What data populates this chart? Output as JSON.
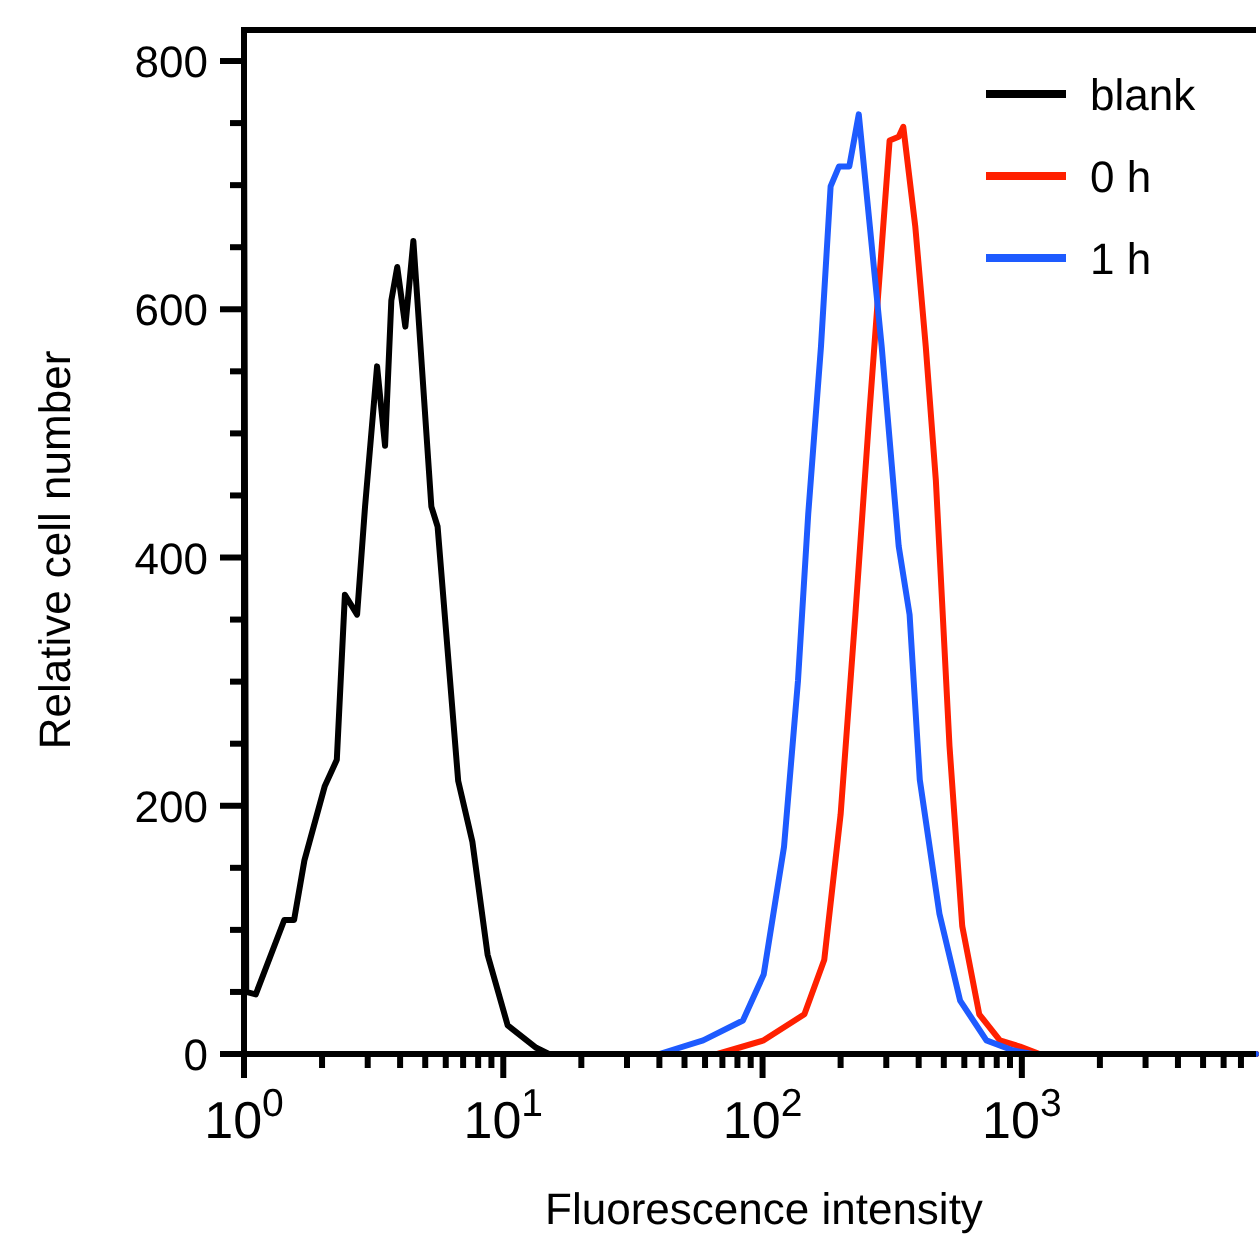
{
  "chart_data": {
    "type": "line",
    "xlabel": "Fluorescence intensity",
    "ylabel": "Relative cell number",
    "log": "x",
    "xlim": [
      1,
      8000
    ],
    "ylim": [
      0,
      825
    ],
    "xticks": [
      {
        "value": 1,
        "label": "10$^{0}$"
      },
      {
        "value": 2,
        "label": null
      },
      {
        "value": 3,
        "label": null
      },
      {
        "value": 4,
        "label": null
      },
      {
        "value": 5,
        "label": null
      },
      {
        "value": 6,
        "label": null
      },
      {
        "value": 7,
        "label": null
      },
      {
        "value": 8,
        "label": null
      },
      {
        "value": 9,
        "label": null
      },
      {
        "value": 10,
        "label": "10$^{1}$"
      },
      {
        "value": 20,
        "label": null
      },
      {
        "value": 30,
        "label": null
      },
      {
        "value": 40,
        "label": null
      },
      {
        "value": 50,
        "label": null
      },
      {
        "value": 60,
        "label": null
      },
      {
        "value": 70,
        "label": null
      },
      {
        "value": 80,
        "label": null
      },
      {
        "value": 90,
        "label": null
      },
      {
        "value": 100,
        "label": "10$^{2}$"
      },
      {
        "value": 200,
        "label": null
      },
      {
        "value": 300,
        "label": null
      },
      {
        "value": 400,
        "label": null
      },
      {
        "value": 500,
        "label": null
      },
      {
        "value": 600,
        "label": null
      },
      {
        "value": 700,
        "label": null
      },
      {
        "value": 800,
        "label": null
      },
      {
        "value": 900,
        "label": null
      },
      {
        "value": 1000,
        "label": "10$^{3}$"
      },
      {
        "value": 2000,
        "label": null
      },
      {
        "value": 3000,
        "label": null
      },
      {
        "value": 4000,
        "label": null
      },
      {
        "value": 5000,
        "label": null
      },
      {
        "value": 6000,
        "label": null
      },
      {
        "value": 7000,
        "label": null
      }
    ],
    "yticks": [
      0,
      {
        "value": 50,
        "label": null
      },
      {
        "value": 100,
        "label": null
      },
      {
        "value": 150,
        "label": null
      },
      200,
      {
        "value": 250,
        "label": null
      },
      {
        "value": 300,
        "label": null
      },
      {
        "value": 350,
        "label": null
      },
      400,
      {
        "value": 450,
        "label": null
      },
      {
        "value": 500,
        "label": null
      },
      {
        "value": 550,
        "label": null
      },
      600,
      {
        "value": 650,
        "label": null
      },
      {
        "value": 700,
        "label": null
      },
      {
        "value": 750,
        "label": null
      },
      800
    ],
    "legend": "top right",
    "line_style": "solid",
    "marker": "none",
    "grid": false,
    "series": [
      {
        "name": "blank",
        "color": "#000000",
        "x": [
          1,
          1.02,
          1.11,
          1.43,
          1.56,
          1.71,
          2.05,
          2.28,
          2.45,
          2.73,
          2.93,
          3.26,
          3.5,
          3.7,
          3.9,
          4.19,
          4.5,
          5.28,
          5.58,
          6.7,
          7.6,
          8.7,
          10.4,
          13.4,
          15,
          8000
        ],
        "values": [
          770,
          50,
          48,
          108,
          108,
          156,
          216,
          237,
          370,
          354,
          441,
          554,
          490,
          607,
          634,
          586,
          655,
          441,
          425,
          220,
          171,
          80,
          23,
          5,
          0,
          0
        ]
      },
      {
        "name": "0 h",
        "color": "#ff2000",
        "x": [
          1,
          67,
          101,
          145,
          173,
          200,
          228,
          258,
          288,
          309,
          335,
          349,
          388,
          426,
          466,
          526,
          589,
          685,
          823,
          984,
          1170,
          8000
        ],
        "values": [
          0,
          0,
          11,
          32,
          76,
          193,
          354,
          515,
          650,
          736,
          739,
          747,
          667,
          570,
          462,
          248,
          103,
          32,
          11,
          6,
          0,
          0
        ]
      },
      {
        "name": "1 h",
        "color": "#1e5bff",
        "x": [
          1,
          40,
          59,
          84,
          101,
          121,
          137,
          150,
          168,
          183,
          197,
          216,
          235,
          249,
          288,
          335,
          369,
          404,
          481,
          578,
          730,
          920,
          1100,
          8000
        ],
        "values": [
          0,
          0,
          11,
          27,
          64,
          167,
          301,
          435,
          570,
          699,
          715,
          715,
          757,
          704,
          570,
          409,
          354,
          221,
          113,
          43,
          11,
          3,
          0,
          0
        ]
      }
    ]
  }
}
